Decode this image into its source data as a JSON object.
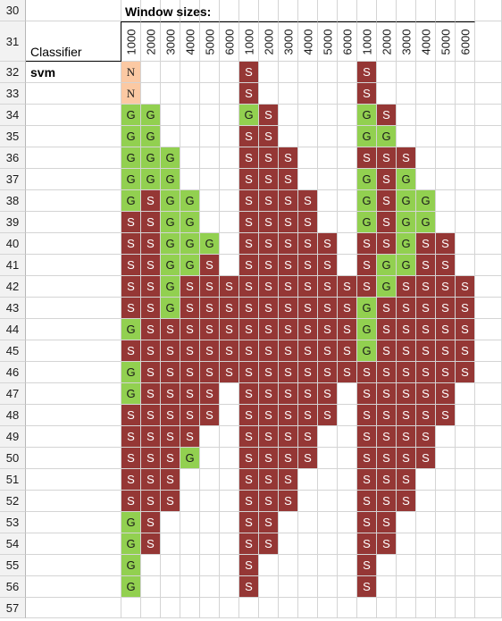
{
  "sheet": {
    "window_sizes_label": "Window sizes:",
    "classifier_label": "Classifier",
    "classifier_value": "svm",
    "row_numbers": [
      "30",
      "31",
      "32",
      "33",
      "34",
      "35",
      "36",
      "37",
      "38",
      "39",
      "40",
      "41",
      "42",
      "43",
      "44",
      "45",
      "46",
      "47",
      "48",
      "49",
      "50",
      "51",
      "52",
      "53",
      "54",
      "55",
      "56",
      "57"
    ],
    "column_headers": [
      "1000",
      "2000",
      "3000",
      "4000",
      "5000",
      "6000",
      "1000",
      "2000",
      "3000",
      "4000",
      "5000",
      "6000",
      "1000",
      "2000",
      "3000",
      "4000",
      "5000",
      "6000"
    ],
    "grid": [
      "N.....S.....S.....",
      "N.....S.....S.....",
      "GG....GS....GS....",
      "GG....SS....GG....",
      "GGG...SSS...SSS...",
      "GGG...SSS...GSG...",
      "GSGG..SSSS..GSGG..",
      "SSGG..SSSS..GSGG..",
      "SSGGG.SSSSS.SSGSS.",
      "SSGGS.SSSSS.SGGSS.",
      "SSGSSSSSSSSSSGSSSS",
      "SSGSSSSSSSSSGSSSSS",
      "GSSSSSSSSSSSGSSSSS",
      "SSSSSSSSSSSSGSSSSS",
      "GSSSSSSSSSSSSSSSSS",
      "GSSSS.SSSSS.SSSSS.",
      "SSSSS.SSSSS.SSSSS.",
      "SSSS..SSSS..SSSS..",
      "SSSG..SSSS..SSSS..",
      "SSS...SSS...SSS...",
      "SSS...SSS...SSS...",
      "GS....SS....SS....",
      "GS....SS....SS....",
      "G.....S.....S.....",
      "G.....S.....S....."
    ],
    "colors": {
      "G": "#92d050",
      "S": "#953735",
      "N": "#fbc9a3",
      "gridline": "#d4d4d4",
      "header_bg": "#f2f2f2"
    }
  }
}
